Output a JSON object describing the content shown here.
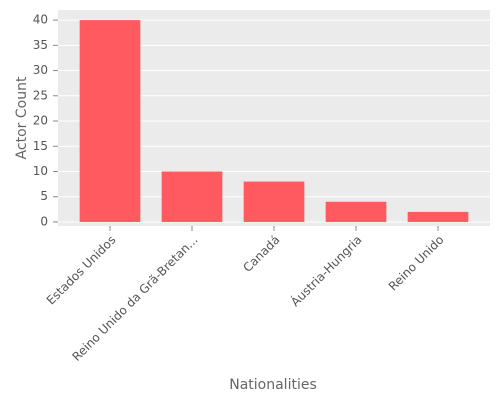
{
  "chart_data": {
    "type": "bar",
    "categories": [
      "Estados Unidos",
      "Reino Unido da Grã-Bretan...",
      "Canadá",
      "Áustria-Hungria",
      "Reino Unido"
    ],
    "values": [
      40,
      10,
      8,
      4,
      2
    ],
    "color": "#ff5a5f",
    "xlabel": "Nationalities",
    "ylabel": "Actor Count",
    "ylim": [
      -0.8,
      42
    ],
    "yticks": [
      0,
      5,
      10,
      15,
      20,
      25,
      30,
      35,
      40
    ],
    "grid": true
  }
}
